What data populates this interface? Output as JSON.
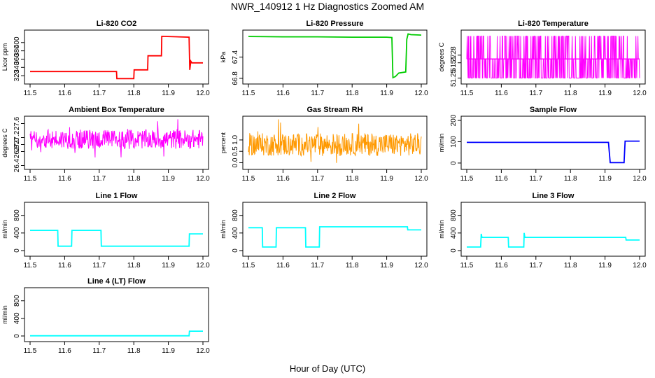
{
  "figure": {
    "title": "NWR_140912  1 Hz Diagnostics Zoomed AM",
    "xlabel": "Hour of Day (UTC)"
  },
  "chart_data": [
    {
      "type": "line",
      "title": "Li-820 CO2",
      "ylabel": "Licor ppm",
      "color": "#ff0000",
      "xlim": [
        11.5,
        12.0
      ],
      "ylim": [
        305,
        425
      ],
      "xticks": [
        "11.5",
        "11.6",
        "11.7",
        "11.8",
        "11.9",
        "12.0"
      ],
      "yticks": [
        {
          "v": 320,
          "t": "320"
        },
        {
          "v": 340,
          "t": "340"
        },
        {
          "v": 360,
          "t": "360"
        },
        {
          "v": 380,
          "t": "380"
        },
        {
          "v": 400,
          "t": "400"
        }
      ],
      "series": [
        {
          "x": [
            11.5,
            11.75,
            11.751,
            11.8,
            11.801,
            11.84,
            11.841,
            11.88,
            11.881,
            11.96,
            11.962,
            11.965,
            11.968,
            12.0
          ],
          "y": [
            330,
            330,
            313,
            313,
            334,
            334,
            368,
            368,
            415,
            413,
            334,
            355,
            351,
            351
          ]
        }
      ]
    },
    {
      "type": "line",
      "title": "Li-820 Pressure",
      "ylabel": "kPa",
      "color": "#00cc00",
      "xlim": [
        11.5,
        12.0
      ],
      "ylim": [
        66.7,
        68.1
      ],
      "xticks": [
        "11.5",
        "11.6",
        "11.7",
        "11.8",
        "11.9",
        "12.0"
      ],
      "yticks": [
        {
          "v": 66.8,
          "t": "66.8"
        },
        {
          "v": 67.4,
          "t": "67.4"
        }
      ],
      "series": [
        {
          "x": [
            11.5,
            11.6,
            11.7,
            11.8,
            11.9,
            11.915,
            11.918,
            11.925,
            11.935,
            11.955,
            11.958,
            11.962,
            11.97,
            12.0
          ],
          "y": [
            67.98,
            67.97,
            67.97,
            67.96,
            67.96,
            67.95,
            66.82,
            66.85,
            66.95,
            66.98,
            67.9,
            68.05,
            68.03,
            68.02
          ]
        }
      ]
    },
    {
      "type": "line",
      "title": "Li-820 Temperature",
      "ylabel": "degrees C",
      "color": "#ff00ff",
      "xlim": [
        11.5,
        12.0
      ],
      "ylim": [
        51.245,
        51.31
      ],
      "xticks": [
        "11.5",
        "11.6",
        "11.7",
        "11.8",
        "11.9",
        "12.0"
      ],
      "yticks": [
        {
          "v": 51.25,
          "t": "51.25"
        },
        {
          "v": 51.27,
          "t": "51.27"
        },
        {
          "v": 51.28,
          "t": "51.28"
        }
      ],
      "series": [
        {
          "x": [
            11.5,
            12.0
          ],
          "y": [
            51.275,
            51.275
          ]
        }
      ]
    },
    {
      "type": "line",
      "title": "Ambient Box Temperature",
      "ylabel": "degrees C",
      "color": "#ff00ff",
      "xlim": [
        11.5,
        12.0
      ],
      "ylim": [
        26.35,
        27.75
      ],
      "xticks": [
        "11.5",
        "11.6",
        "11.7",
        "11.8",
        "11.9",
        "12.0"
      ],
      "yticks": [
        {
          "v": 26.4,
          "t": "26.4"
        },
        {
          "v": 26.8,
          "t": "26.8"
        },
        {
          "v": 27.0,
          "t": "27.0"
        },
        {
          "v": 27.2,
          "t": "27.2"
        },
        {
          "v": 27.6,
          "t": "27.6"
        }
      ],
      "series": [
        {
          "x": [
            11.5,
            12.0
          ],
          "y": [
            27.15,
            27.15
          ]
        }
      ]
    },
    {
      "type": "line",
      "title": "Gas Stream RH",
      "ylabel": "percent",
      "color": "#ff9900",
      "xlim": [
        11.5,
        12.0
      ],
      "ylim": [
        -0.2,
        1.95
      ],
      "xticks": [
        "11.5",
        "11.6",
        "11.7",
        "11.8",
        "11.9",
        "12.0"
      ],
      "yticks": [
        {
          "v": 0.0,
          "t": "0.0"
        },
        {
          "v": 0.5,
          "t": "0.5"
        },
        {
          "v": 1.0,
          "t": "1.0"
        }
      ],
      "series": [
        {
          "x": [
            11.5,
            12.0
          ],
          "y": [
            0.8,
            0.8
          ]
        }
      ]
    },
    {
      "type": "line",
      "title": "Sample Flow",
      "ylabel": "ml/min",
      "color": "#0000ff",
      "xlim": [
        11.5,
        12.0
      ],
      "ylim": [
        -20,
        210
      ],
      "xticks": [
        "11.5",
        "11.6",
        "11.7",
        "11.8",
        "11.9",
        "12.0"
      ],
      "yticks": [
        {
          "v": 0,
          "t": "0"
        },
        {
          "v": 100,
          "t": "100"
        },
        {
          "v": 200,
          "t": "200"
        }
      ],
      "series": [
        {
          "x": [
            11.5,
            11.91,
            11.915,
            11.955,
            11.958,
            12.0
          ],
          "y": [
            97,
            97,
            2,
            2,
            103,
            103
          ]
        }
      ]
    },
    {
      "type": "line",
      "title": "Line 1 Flow",
      "ylabel": "ml/min",
      "color": "#00ffff",
      "xlim": [
        11.5,
        12.0
      ],
      "ylim": [
        -80,
        1050
      ],
      "xticks": [
        "11.5",
        "11.6",
        "11.7",
        "11.8",
        "11.9",
        "12.0"
      ],
      "yticks": [
        {
          "v": 0,
          "t": "0"
        },
        {
          "v": 400,
          "t": "400"
        },
        {
          "v": 800,
          "t": "800"
        }
      ],
      "series": [
        {
          "x": [
            11.5,
            11.58,
            11.581,
            11.62,
            11.621,
            11.705,
            11.706,
            11.96,
            11.961,
            12.0
          ],
          "y": [
            460,
            460,
            100,
            100,
            460,
            460,
            100,
            100,
            380,
            380
          ]
        }
      ]
    },
    {
      "type": "line",
      "title": "Line 2 Flow",
      "ylabel": "ml/min",
      "color": "#00ffff",
      "xlim": [
        11.5,
        12.0
      ],
      "ylim": [
        -80,
        1050
      ],
      "xticks": [
        "11.5",
        "11.6",
        "11.7",
        "11.8",
        "11.9",
        "12.0"
      ],
      "yticks": [
        {
          "v": 0,
          "t": "0"
        },
        {
          "v": 400,
          "t": "400"
        },
        {
          "v": 800,
          "t": "800"
        }
      ],
      "series": [
        {
          "x": [
            11.5,
            11.54,
            11.541,
            11.58,
            11.581,
            11.665,
            11.666,
            11.705,
            11.706,
            11.96,
            11.961,
            12.0
          ],
          "y": [
            520,
            520,
            80,
            80,
            520,
            520,
            80,
            80,
            540,
            540,
            470,
            470
          ]
        }
      ]
    },
    {
      "type": "line",
      "title": "Line 3 Flow",
      "ylabel": "ml/min",
      "color": "#00ffff",
      "xlim": [
        11.5,
        12.0
      ],
      "ylim": [
        -80,
        1050
      ],
      "xticks": [
        "11.5",
        "11.6",
        "11.7",
        "11.8",
        "11.9",
        "12.0"
      ],
      "yticks": [
        {
          "v": 0,
          "t": "0"
        },
        {
          "v": 400,
          "t": "400"
        },
        {
          "v": 800,
          "t": "800"
        }
      ],
      "series": [
        {
          "x": [
            11.5,
            11.54,
            11.542,
            11.544,
            11.62,
            11.621,
            11.665,
            11.666,
            11.668,
            11.96,
            11.961,
            12.0
          ],
          "y": [
            80,
            80,
            380,
            300,
            300,
            80,
            80,
            400,
            300,
            300,
            240,
            240
          ]
        }
      ]
    },
    {
      "type": "line",
      "title": "Line 4 (LT) Flow",
      "ylabel": "ml/min",
      "color": "#00ffff",
      "xlim": [
        11.5,
        12.0
      ],
      "ylim": [
        -80,
        1050
      ],
      "xticks": [
        "11.5",
        "11.6",
        "11.7",
        "11.8",
        "11.9",
        "12.0"
      ],
      "yticks": [
        {
          "v": 0,
          "t": "0"
        },
        {
          "v": 400,
          "t": "400"
        },
        {
          "v": 800,
          "t": "800"
        }
      ],
      "series": [
        {
          "x": [
            11.5,
            11.96,
            11.961,
            12.0
          ],
          "y": [
            5,
            5,
            110,
            110
          ]
        }
      ]
    }
  ]
}
